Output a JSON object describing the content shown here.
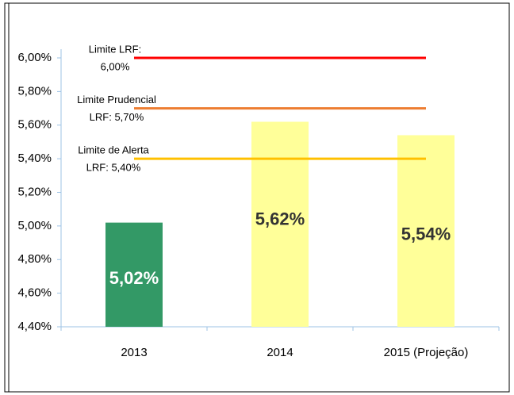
{
  "chart_data": {
    "type": "bar",
    "categories": [
      "2013",
      "2014",
      "2015 (Projeção)"
    ],
    "values": [
      5.02,
      5.62,
      5.54
    ],
    "value_labels": [
      "5,02%",
      "5,62%",
      "5,54%"
    ],
    "colors": [
      "#339966",
      "#ffff99",
      "#ffff99"
    ],
    "value_label_colors": [
      "#ffffff",
      "#333333",
      "#333333"
    ],
    "ylim": [
      4.4,
      6.0
    ],
    "yticks": [
      {
        "value": 4.4,
        "label": "4,40%"
      },
      {
        "value": 4.6,
        "label": "4,60%"
      },
      {
        "value": 4.8,
        "label": "4,80%"
      },
      {
        "value": 5.0,
        "label": "5,00%"
      },
      {
        "value": 5.2,
        "label": "5,20%"
      },
      {
        "value": 5.4,
        "label": "5,40%"
      },
      {
        "value": 5.6,
        "label": "5,60%"
      },
      {
        "value": 5.8,
        "label": "5,80%"
      },
      {
        "value": 6.0,
        "label": "6,00%"
      }
    ],
    "reference_lines": [
      {
        "label_lines": [
          "Limite LRF:",
          "6,00%"
        ],
        "value": 6.0,
        "color": "#ff0000"
      },
      {
        "label_lines": [
          "Limite Prudencial",
          "LRF: 5,70%"
        ],
        "value": 5.7,
        "color": "#ed7d31"
      },
      {
        "label_lines": [
          "Limite de Alerta",
          "LRF: 5,40%"
        ],
        "value": 5.4,
        "color": "#ffc000"
      }
    ]
  }
}
